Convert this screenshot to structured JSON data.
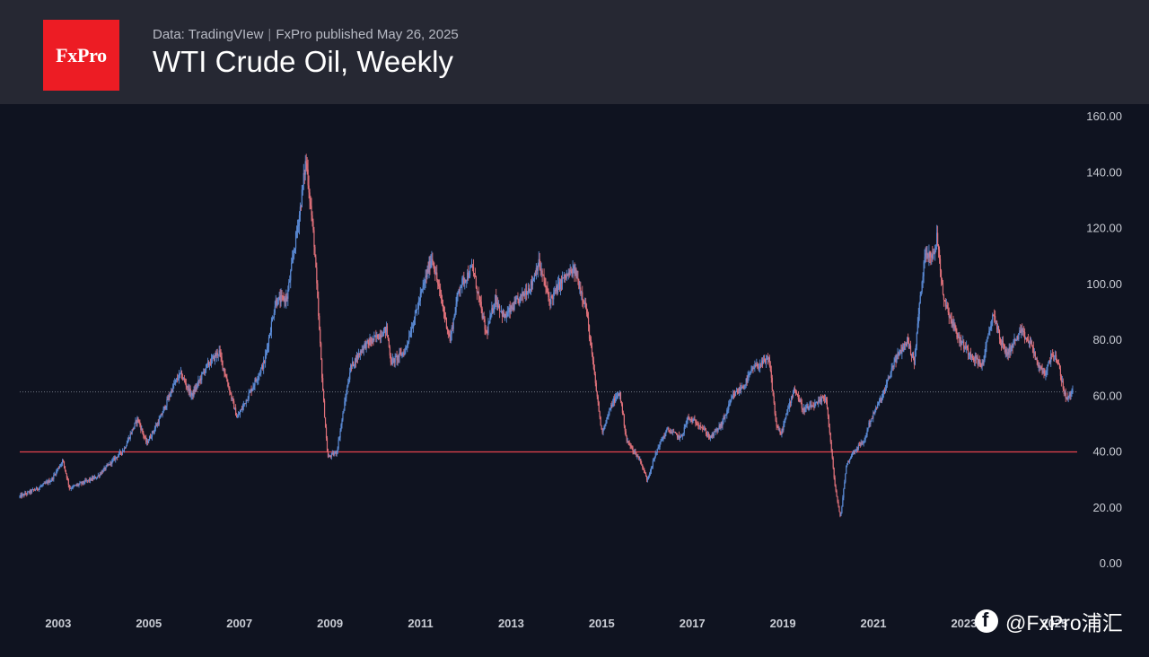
{
  "header": {
    "logo_text": "FxPro",
    "subtitle_source": "Data: TradingVIew",
    "subtitle_separator": "|",
    "subtitle_published": "FxPro published May 26, 2025",
    "title": "WTI Crude Oil, Weekly"
  },
  "watermark": {
    "icon": "social-badge-icon",
    "text": "@FxPro浦汇"
  },
  "colors": {
    "background": "#0f1320",
    "header": "#262833",
    "logo": "#ed1c24",
    "bull": "#5b8bd6",
    "bear": "#e0717a",
    "support_line": "#e6434d",
    "last_price_line": "#6f7482"
  },
  "chart_data": {
    "type": "candlestick",
    "title": "WTI Crude Oil, Weekly",
    "ylim": [
      0,
      160
    ],
    "y_ticks": [
      "160.00",
      "140.00",
      "120.00",
      "100.00",
      "80.00",
      "60.00",
      "40.00",
      "20.00",
      "0.00"
    ],
    "x_ticks": [
      "2003",
      "2005",
      "2007",
      "2009",
      "2011",
      "2013",
      "2015",
      "2017",
      "2019",
      "2021",
      "2023",
      "2025"
    ],
    "xlim": [
      2002.2,
      2025.45
    ],
    "horizontal_lines": [
      {
        "label": "support",
        "y": 40,
        "style": "solid"
      },
      {
        "label": "last price",
        "y": 61.5,
        "style": "dotted"
      }
    ],
    "series": [
      {
        "values_path": [
          [
            2002.2,
            24
          ],
          [
            2002.6,
            27
          ],
          [
            2002.9,
            30
          ],
          [
            2003.15,
            37
          ],
          [
            2003.3,
            27
          ],
          [
            2003.6,
            29
          ],
          [
            2003.9,
            31
          ],
          [
            2004.2,
            36
          ],
          [
            2004.5,
            41
          ],
          [
            2004.8,
            52
          ],
          [
            2005.0,
            43
          ],
          [
            2005.3,
            52
          ],
          [
            2005.6,
            64
          ],
          [
            2005.75,
            68
          ],
          [
            2006.0,
            60
          ],
          [
            2006.3,
            70
          ],
          [
            2006.6,
            76
          ],
          [
            2006.9,
            58
          ],
          [
            2007.0,
            52
          ],
          [
            2007.3,
            62
          ],
          [
            2007.6,
            72
          ],
          [
            2007.85,
            94
          ],
          [
            2008.1,
            95
          ],
          [
            2008.4,
            128
          ],
          [
            2008.52,
            145
          ],
          [
            2008.7,
            115
          ],
          [
            2008.9,
            60
          ],
          [
            2009.0,
            38
          ],
          [
            2009.2,
            40
          ],
          [
            2009.5,
            70
          ],
          [
            2009.8,
            78
          ],
          [
            2010.0,
            80
          ],
          [
            2010.3,
            84
          ],
          [
            2010.4,
            72
          ],
          [
            2010.7,
            76
          ],
          [
            2010.95,
            90
          ],
          [
            2011.3,
            110
          ],
          [
            2011.5,
            95
          ],
          [
            2011.7,
            80
          ],
          [
            2011.9,
            99
          ],
          [
            2012.2,
            106
          ],
          [
            2012.5,
            82
          ],
          [
            2012.7,
            95
          ],
          [
            2012.9,
            88
          ],
          [
            2013.2,
            94
          ],
          [
            2013.5,
            100
          ],
          [
            2013.65,
            108
          ],
          [
            2013.9,
            94
          ],
          [
            2014.2,
            102
          ],
          [
            2014.45,
            105
          ],
          [
            2014.7,
            92
          ],
          [
            2014.9,
            66
          ],
          [
            2015.05,
            47
          ],
          [
            2015.3,
            58
          ],
          [
            2015.45,
            61
          ],
          [
            2015.6,
            44
          ],
          [
            2015.9,
            37
          ],
          [
            2016.05,
            30
          ],
          [
            2016.3,
            42
          ],
          [
            2016.5,
            48
          ],
          [
            2016.8,
            45
          ],
          [
            2016.95,
            52
          ],
          [
            2017.2,
            50
          ],
          [
            2017.45,
            45
          ],
          [
            2017.7,
            50
          ],
          [
            2017.95,
            60
          ],
          [
            2018.2,
            64
          ],
          [
            2018.4,
            70
          ],
          [
            2018.75,
            73
          ],
          [
            2018.9,
            50
          ],
          [
            2019.0,
            46
          ],
          [
            2019.3,
            63
          ],
          [
            2019.5,
            55
          ],
          [
            2019.8,
            57
          ],
          [
            2020.0,
            60
          ],
          [
            2020.2,
            28
          ],
          [
            2020.32,
            16
          ],
          [
            2020.45,
            35
          ],
          [
            2020.6,
            40
          ],
          [
            2020.85,
            44
          ],
          [
            2020.95,
            50
          ],
          [
            2021.3,
            62
          ],
          [
            2021.5,
            72
          ],
          [
            2021.8,
            80
          ],
          [
            2021.95,
            72
          ],
          [
            2022.05,
            90
          ],
          [
            2022.2,
            112
          ],
          [
            2022.4,
            110
          ],
          [
            2022.45,
            118
          ],
          [
            2022.6,
            95
          ],
          [
            2022.8,
            86
          ],
          [
            2022.95,
            80
          ],
          [
            2023.2,
            75
          ],
          [
            2023.45,
            71
          ],
          [
            2023.7,
            90
          ],
          [
            2023.85,
            80
          ],
          [
            2024.0,
            75
          ],
          [
            2024.3,
            83
          ],
          [
            2024.55,
            78
          ],
          [
            2024.7,
            70
          ],
          [
            2024.85,
            68
          ],
          [
            2025.0,
            76
          ],
          [
            2025.15,
            70
          ],
          [
            2025.28,
            60
          ],
          [
            2025.35,
            59
          ],
          [
            2025.45,
            62
          ]
        ]
      }
    ]
  }
}
